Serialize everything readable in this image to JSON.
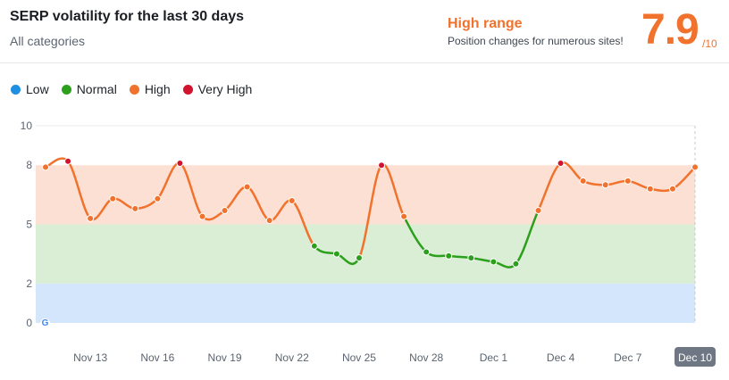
{
  "header": {
    "title": "SERP volatility for the last 30 days",
    "subtitle": "All categories",
    "range_label": "High range",
    "range_description": "Position changes for numerous sites!",
    "score": "7.9",
    "score_max": "/10"
  },
  "legend": [
    {
      "label": "Low",
      "color": "#1e8fe1"
    },
    {
      "label": "Normal",
      "color": "#2ca01c"
    },
    {
      "label": "High",
      "color": "#f0722d"
    },
    {
      "label": "Very High",
      "color": "#d3122e"
    }
  ],
  "source_icon": "google-icon",
  "chart_data": {
    "type": "line",
    "title": "SERP volatility for the last 30 days",
    "xlabel": "",
    "ylabel": "",
    "ylim": [
      0,
      10
    ],
    "yticks": [
      0,
      2,
      5,
      8,
      10
    ],
    "xticks": [
      "Nov 13",
      "Nov 16",
      "Nov 19",
      "Nov 22",
      "Nov 25",
      "Nov 28",
      "Dec 1",
      "Dec 4",
      "Dec 7",
      "Dec 10"
    ],
    "selected_xtick": "Dec 10",
    "bands": [
      {
        "name": "Low",
        "from": 0,
        "to": 2,
        "color": "#d3e6fb"
      },
      {
        "name": "Normal",
        "from": 2,
        "to": 5,
        "color": "#d9eed4"
      },
      {
        "name": "High",
        "from": 5,
        "to": 8,
        "color": "#fde0d4"
      }
    ],
    "x": [
      "Nov 11",
      "Nov 12",
      "Nov 13",
      "Nov 14",
      "Nov 15",
      "Nov 16",
      "Nov 17",
      "Nov 18",
      "Nov 19",
      "Nov 20",
      "Nov 21",
      "Nov 22",
      "Nov 23",
      "Nov 24",
      "Nov 25",
      "Nov 26",
      "Nov 27",
      "Nov 28",
      "Nov 29",
      "Nov 30",
      "Dec 1",
      "Dec 2",
      "Dec 3",
      "Dec 4",
      "Dec 5",
      "Dec 6",
      "Dec 7",
      "Dec 8",
      "Dec 9",
      "Dec 10"
    ],
    "values": [
      7.9,
      8.2,
      5.3,
      6.3,
      5.8,
      6.3,
      8.1,
      5.4,
      5.7,
      6.9,
      5.2,
      6.2,
      3.9,
      3.5,
      3.3,
      8.0,
      5.4,
      3.6,
      3.4,
      3.3,
      3.1,
      3.0,
      5.7,
      8.1,
      7.2,
      7.0,
      7.2,
      6.8,
      6.8,
      7.9
    ],
    "thresholds": {
      "low_max": 2,
      "normal_max": 5,
      "high_max": 8
    }
  }
}
